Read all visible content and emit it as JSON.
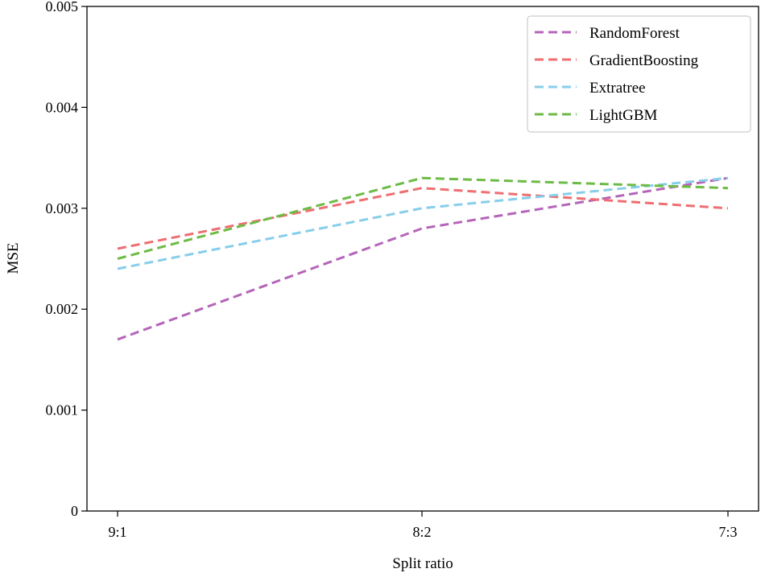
{
  "chart_data": {
    "type": "line",
    "title": "",
    "xlabel": "Split ratio",
    "ylabel": "MSE",
    "categories": [
      "9:1",
      "8:2",
      "7:3"
    ],
    "ylim": [
      0,
      0.005
    ],
    "yticks": [
      "0",
      "0.001",
      "0.002",
      "0.003",
      "0.004",
      "0.005"
    ],
    "ytick_values": [
      0,
      0.001,
      0.002,
      0.003,
      0.004,
      0.005
    ],
    "grid": false,
    "legend_position": "top-right",
    "line_style": "dashed",
    "series": [
      {
        "name": "RandomForest",
        "color": "#b565b9",
        "values": [
          0.0017,
          0.0028,
          0.0033
        ]
      },
      {
        "name": "GradientBoosting",
        "color": "#ee6e72",
        "values": [
          0.0026,
          0.0032,
          0.003
        ]
      },
      {
        "name": "Extratree",
        "color": "#87ceea",
        "values": [
          0.0024,
          0.003,
          0.0033
        ]
      },
      {
        "name": "LightGBM",
        "color": "#6dbb45",
        "values": [
          0.0025,
          0.0033,
          0.0032
        ]
      }
    ]
  }
}
